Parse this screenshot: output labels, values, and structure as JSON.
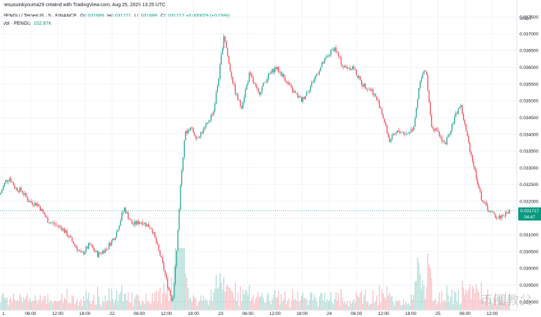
{
  "header": {
    "credit": "hesusuinkyouma29 created with TradingView.com, Aug 25, 2025 13:25 UTC",
    "pair": "PENGU / TetherUS · 5 · BINANCE",
    "ohlc": [
      {
        "label": "O",
        "value": "0.031689"
      },
      {
        "label": "H",
        "value": "0.031721"
      },
      {
        "label": "L",
        "value": "0.031689"
      },
      {
        "label": "C",
        "value": "0.031717"
      }
    ],
    "change": "+0.000029 (+0.09%)",
    "volume_label": "Vol · PENGU",
    "volume_value": "102.87K"
  },
  "price_tag": {
    "price": "0.031717",
    "countdown": "04:47"
  },
  "watermark": "币圈教父",
  "colors": {
    "up": "#089981",
    "down": "#f23645",
    "grid": "#f0f3fa",
    "last_line": "#089981"
  },
  "chart_data": {
    "type": "candlestick",
    "currency": "USDT",
    "ylim": [
      0.02875,
      0.0378
    ],
    "y_ticks": [
      "0.037500",
      "0.037000",
      "0.036500",
      "0.036000",
      "0.035500",
      "0.035000",
      "0.034500",
      "0.034000",
      "0.033500",
      "0.033000",
      "0.032500",
      "0.032000",
      "0.031500",
      "0.031000",
      "0.030500",
      "0.030000",
      "0.029500",
      "0.029000",
      "0.028500"
    ],
    "x_ticks": [
      "1",
      "06:00",
      "12:00",
      "18:00",
      "22",
      "06:00",
      "12:00",
      "18:00",
      "23",
      "06:00",
      "12:00",
      "18:00",
      "24",
      "06:00",
      "12:00",
      "18:00",
      "25",
      "06:00",
      "12:00"
    ],
    "price_path": [
      [
        0,
        0.0322
      ],
      [
        8,
        0.0326
      ],
      [
        14,
        0.0327
      ],
      [
        22,
        0.0324
      ],
      [
        32,
        0.0323
      ],
      [
        42,
        0.032
      ],
      [
        55,
        0.0319
      ],
      [
        70,
        0.0314
      ],
      [
        90,
        0.0312
      ],
      [
        105,
        0.0308
      ],
      [
        118,
        0.0304
      ],
      [
        130,
        0.0307
      ],
      [
        142,
        0.0304
      ],
      [
        155,
        0.0306
      ],
      [
        168,
        0.031
      ],
      [
        180,
        0.0318
      ],
      [
        192,
        0.0313
      ],
      [
        205,
        0.0314
      ],
      [
        220,
        0.0312
      ],
      [
        235,
        0.0302
      ],
      [
        242,
        0.0296
      ],
      [
        250,
        0.029
      ],
      [
        256,
        0.0304
      ],
      [
        262,
        0.0325
      ],
      [
        268,
        0.034
      ],
      [
        276,
        0.0342
      ],
      [
        286,
        0.0339
      ],
      [
        298,
        0.0342
      ],
      [
        310,
        0.0347
      ],
      [
        318,
        0.0358
      ],
      [
        325,
        0.037
      ],
      [
        333,
        0.036
      ],
      [
        342,
        0.0352
      ],
      [
        350,
        0.0348
      ],
      [
        362,
        0.0358
      ],
      [
        375,
        0.0352
      ],
      [
        388,
        0.0357
      ],
      [
        400,
        0.036
      ],
      [
        412,
        0.0357
      ],
      [
        424,
        0.0353
      ],
      [
        438,
        0.035
      ],
      [
        452,
        0.0355
      ],
      [
        468,
        0.0361
      ],
      [
        485,
        0.0366
      ],
      [
        498,
        0.036
      ],
      [
        512,
        0.036
      ],
      [
        525,
        0.0355
      ],
      [
        540,
        0.0353
      ],
      [
        552,
        0.0348
      ],
      [
        565,
        0.0338
      ],
      [
        578,
        0.0341
      ],
      [
        590,
        0.034
      ],
      [
        600,
        0.0342
      ],
      [
        610,
        0.0357
      ],
      [
        618,
        0.0359
      ],
      [
        626,
        0.0343
      ],
      [
        636,
        0.034
      ],
      [
        646,
        0.0337
      ],
      [
        658,
        0.0344
      ],
      [
        668,
        0.0349
      ],
      [
        678,
        0.0339
      ],
      [
        688,
        0.033
      ],
      [
        698,
        0.0321
      ],
      [
        710,
        0.0317
      ],
      [
        722,
        0.0315
      ],
      [
        732,
        0.0316
      ],
      [
        740,
        0.03172
      ]
    ]
  }
}
